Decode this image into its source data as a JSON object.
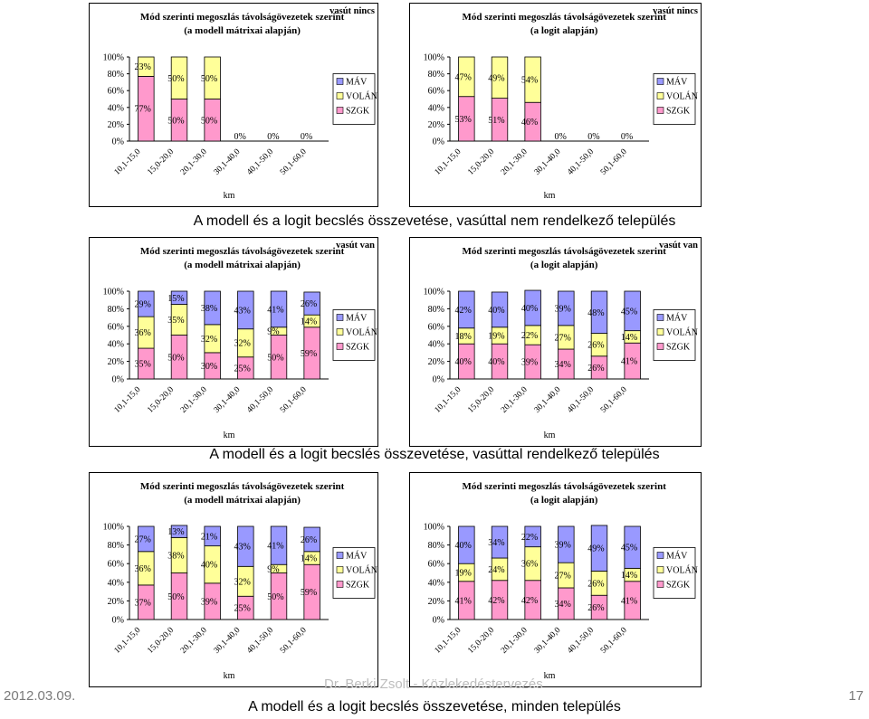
{
  "colors": {
    "mav": "#9999FF",
    "volan": "#FFFF99",
    "szgk": "#FF99CC",
    "border": "#000000"
  },
  "legend_labels": [
    "MÁV",
    "VOLÁN",
    "SZGK"
  ],
  "section_titles": [
    "A modell és a logit becslés összevetése, vasúttal nem rendelkező település",
    "A modell és a logit becslés összevetése, vasúttal rendelkező település",
    "A modell és a logit becslés összevetése, minden település"
  ],
  "footer": {
    "date": "2012.03.09.",
    "center": "Dr. Berki Zsolt - Közlekedéstervezés",
    "page": "17"
  },
  "chart_data": [
    {
      "type": "bar",
      "stacked": true,
      "title": "Mód szerinti megoszlás távolságövezetek szerint",
      "subtitle": "(a modell mátrixai alapján)",
      "corner_label": "vasút nincs",
      "xlabel": "km",
      "yticks": [
        "0%",
        "20%",
        "40%",
        "60%",
        "80%",
        "100%"
      ],
      "categories": [
        "10,1-15,0",
        "15,0-20,0",
        "20,1-30,0",
        "30,1-40,0",
        "40,1-50,0",
        "50,1-60,0"
      ],
      "series": [
        {
          "name": "MÁV",
          "values": [
            0,
            0,
            0,
            0,
            0,
            0
          ]
        },
        {
          "name": "VOLÁN",
          "values": [
            23,
            50,
            50,
            0,
            0,
            0
          ]
        },
        {
          "name": "SZGK",
          "values": [
            77,
            50,
            50,
            0,
            0,
            0
          ]
        }
      ],
      "labels": [
        [
          "",
          "23%",
          "77%"
        ],
        [
          "",
          "50%",
          "50%"
        ],
        [
          "",
          "50%",
          "50%"
        ],
        [
          "0%",
          "",
          ""
        ],
        [
          "0%",
          "",
          ""
        ],
        [
          "0%",
          "",
          ""
        ]
      ],
      "legend": "right"
    },
    {
      "type": "bar",
      "stacked": true,
      "title": "Mód szerinti megoszlás távolságövezetek szerint",
      "subtitle": "(a logit alapján)",
      "corner_label": "vasút nincs",
      "xlabel": "km",
      "yticks": [
        "0%",
        "20%",
        "40%",
        "60%",
        "80%",
        "100%"
      ],
      "categories": [
        "10,1-15,0",
        "15,0-20,0",
        "20,1-30,0",
        "30,1-40,0",
        "40,1-50,0",
        "50,1-60,0"
      ],
      "series": [
        {
          "name": "MÁV",
          "values": [
            0,
            0,
            0,
            0,
            0,
            0
          ]
        },
        {
          "name": "VOLÁN",
          "values": [
            47,
            49,
            54,
            0,
            0,
            0
          ]
        },
        {
          "name": "SZGK",
          "values": [
            53,
            51,
            46,
            0,
            0,
            0
          ]
        }
      ],
      "labels": [
        [
          "",
          "47%",
          "53%"
        ],
        [
          "",
          "49%",
          "51%"
        ],
        [
          "",
          "54%",
          "46%"
        ],
        [
          "0%",
          "",
          ""
        ],
        [
          "0%",
          "",
          ""
        ],
        [
          "0%",
          "",
          ""
        ]
      ],
      "legend": "right"
    },
    {
      "type": "bar",
      "stacked": true,
      "title": "Mód szerinti megoszlás távolságövezetek szerint",
      "subtitle": "(a modell mátrixai alapján)",
      "corner_label": "vasút van",
      "xlabel": "km",
      "yticks": [
        "0%",
        "20%",
        "40%",
        "60%",
        "80%",
        "100%"
      ],
      "categories": [
        "10,1-15,0",
        "15,0-20,0",
        "20,1-30,0",
        "30,1-40,0",
        "40,1-50,0",
        "50,1-60,0"
      ],
      "series": [
        {
          "name": "MÁV",
          "values": [
            29,
            15,
            38,
            43,
            41,
            26
          ]
        },
        {
          "name": "VOLÁN",
          "values": [
            36,
            35,
            32,
            32,
            9,
            14
          ]
        },
        {
          "name": "SZGK",
          "values": [
            35,
            50,
            30,
            25,
            50,
            59
          ]
        }
      ],
      "labels": [
        [
          "29%",
          "36%",
          "35%"
        ],
        [
          "15%",
          "35%",
          "50%"
        ],
        [
          "38%",
          "32%",
          "30%"
        ],
        [
          "43%",
          "32%",
          "25%"
        ],
        [
          "41%",
          "9%",
          "50%"
        ],
        [
          "26%",
          "14%",
          "59%"
        ]
      ],
      "legend": "right"
    },
    {
      "type": "bar",
      "stacked": true,
      "title": "Mód szerinti megoszlás távolságövezetek szerint",
      "subtitle": "(a logit alapján)",
      "corner_label": "vasút van",
      "xlabel": "km",
      "yticks": [
        "0%",
        "20%",
        "40%",
        "60%",
        "80%",
        "100%"
      ],
      "categories": [
        "10,1-15,0",
        "15,0-20,0",
        "20,1-30,0",
        "30,1-40,0",
        "40,1-50,0",
        "50,1-60,0"
      ],
      "series": [
        {
          "name": "MÁV",
          "values": [
            42,
            40,
            40,
            39,
            48,
            45
          ]
        },
        {
          "name": "VOLÁN",
          "values": [
            18,
            19,
            22,
            27,
            26,
            14
          ]
        },
        {
          "name": "SZGK",
          "values": [
            40,
            40,
            39,
            34,
            26,
            41
          ]
        }
      ],
      "labels": [
        [
          "42%",
          "18%",
          "40%"
        ],
        [
          "40%",
          "19%",
          "40%"
        ],
        [
          "40%",
          "22%",
          "39%"
        ],
        [
          "39%",
          "27%",
          "34%"
        ],
        [
          "48%",
          "26%",
          "26%"
        ],
        [
          "45%",
          "14%",
          "41%"
        ]
      ],
      "legend": "right"
    },
    {
      "type": "bar",
      "stacked": true,
      "title": "Mód szerinti megoszlás távolságövezetek szerint",
      "subtitle": "(a modell mátrixai alapján)",
      "corner_label": "",
      "xlabel": "km",
      "yticks": [
        "0%",
        "20%",
        "40%",
        "60%",
        "80%",
        "100%"
      ],
      "categories": [
        "10,1-15,0",
        "15,0-20,0",
        "20,1-30,0",
        "30,1-40,0",
        "40,1-50,0",
        "50,1-60,0"
      ],
      "series": [
        {
          "name": "MÁV",
          "values": [
            27,
            13,
            21,
            43,
            41,
            26
          ]
        },
        {
          "name": "VOLÁN",
          "values": [
            36,
            38,
            40,
            32,
            9,
            14
          ]
        },
        {
          "name": "SZGK",
          "values": [
            37,
            50,
            39,
            25,
            50,
            59
          ]
        }
      ],
      "labels": [
        [
          "27%",
          "36%",
          "37%"
        ],
        [
          "13%",
          "38%",
          "50%"
        ],
        [
          "21%",
          "40%",
          "39%"
        ],
        [
          "43%",
          "32%",
          "25%"
        ],
        [
          "41%",
          "9%",
          "50%"
        ],
        [
          "26%",
          "14%",
          "59%"
        ]
      ],
      "legend": "right"
    },
    {
      "type": "bar",
      "stacked": true,
      "title": "Mód szerinti megoszlás távolságövezetek szerint",
      "subtitle": "(a logit alapján)",
      "corner_label": "",
      "xlabel": "km",
      "yticks": [
        "0%",
        "20%",
        "40%",
        "60%",
        "80%",
        "100%"
      ],
      "categories": [
        "10,1-15,0",
        "15,0-20,0",
        "20,1-30,0",
        "30,1-40,0",
        "40,1-50,0",
        "50,1-60,0"
      ],
      "series": [
        {
          "name": "MÁV",
          "values": [
            40,
            34,
            22,
            39,
            49,
            45
          ]
        },
        {
          "name": "VOLÁN",
          "values": [
            19,
            24,
            36,
            27,
            26,
            14
          ]
        },
        {
          "name": "SZGK",
          "values": [
            41,
            42,
            42,
            34,
            26,
            41
          ]
        }
      ],
      "labels": [
        [
          "40%",
          "19%",
          "41%"
        ],
        [
          "34%",
          "24%",
          "42%"
        ],
        [
          "22%",
          "36%",
          "42%"
        ],
        [
          "39%",
          "27%",
          "34%"
        ],
        [
          "49%",
          "26%",
          "26%"
        ],
        [
          "45%",
          "14%",
          "41%"
        ]
      ],
      "legend": "right"
    }
  ]
}
